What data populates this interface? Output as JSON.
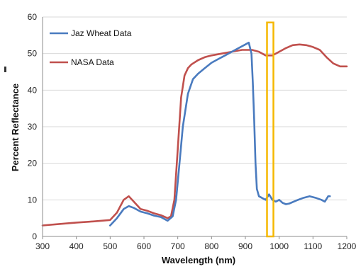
{
  "colors": {
    "jaz": "#4a7bbf",
    "nasa": "#c0504d",
    "highlight": "#f5b800",
    "grid": "#d9d9d9",
    "axis": "#8c8c8c"
  },
  "chart_data": {
    "type": "line",
    "title": "",
    "xlabel": "Wavelength (nm)",
    "ylabel": "Percent Reflectance",
    "xlim": [
      300,
      1200
    ],
    "ylim": [
      0,
      60
    ],
    "xticks": [
      "300",
      "400",
      "500",
      "600",
      "700",
      "800",
      "900",
      "1000",
      "1100",
      "1200"
    ],
    "yticks": [
      "0",
      "10",
      "20",
      "30",
      "40",
      "50",
      "60"
    ],
    "grid": "horizontal",
    "legend_position": "top-left",
    "series": [
      {
        "name": "Jaz Wheat Data",
        "x": [
          500,
          520,
          540,
          555,
          570,
          590,
          610,
          630,
          650,
          670,
          685,
          695,
          705,
          715,
          730,
          745,
          760,
          780,
          800,
          820,
          840,
          860,
          880,
          900,
          910,
          918,
          922,
          926,
          930,
          934,
          940,
          950,
          960,
          970,
          980,
          990,
          1000,
          1010,
          1020,
          1030,
          1050,
          1070,
          1090,
          1110,
          1125,
          1135,
          1145,
          1150
        ],
        "y": [
          3,
          5,
          7.5,
          8.3,
          7.8,
          6.8,
          6.3,
          5.7,
          5.3,
          4.3,
          5.5,
          10,
          20,
          30,
          39,
          43,
          44.5,
          46,
          47.5,
          48.5,
          49.5,
          50.5,
          51.5,
          52.5,
          53,
          50,
          42,
          32,
          20,
          13,
          11,
          10.5,
          10,
          11.5,
          10,
          9.5,
          10,
          9.2,
          8.8,
          9,
          9.8,
          10.5,
          11,
          10.5,
          10,
          9.5,
          11,
          11
        ]
      },
      {
        "name": "NASA Data",
        "x": [
          300,
          350,
          400,
          450,
          500,
          520,
          540,
          555,
          570,
          590,
          610,
          630,
          650,
          670,
          680,
          690,
          700,
          710,
          720,
          730,
          740,
          760,
          780,
          800,
          830,
          860,
          890,
          920,
          940,
          960,
          980,
          1000,
          1020,
          1040,
          1060,
          1080,
          1100,
          1120,
          1140,
          1160,
          1180,
          1200
        ],
        "y": [
          3,
          3.4,
          3.8,
          4.1,
          4.5,
          6.5,
          10,
          11,
          9.5,
          7.5,
          7,
          6.3,
          5.8,
          5,
          5.5,
          10,
          24,
          38,
          44,
          46,
          47,
          48.2,
          49,
          49.5,
          50,
          50.5,
          51,
          51,
          50.5,
          49.5,
          49.5,
          50.5,
          51.5,
          52.3,
          52.5,
          52.3,
          51.8,
          51,
          49,
          47.3,
          46.5,
          46.5
        ]
      }
    ],
    "highlight": {
      "x_start": 964,
      "x_end": 983,
      "y_bottom": 0,
      "y_top": 58.5
    }
  }
}
